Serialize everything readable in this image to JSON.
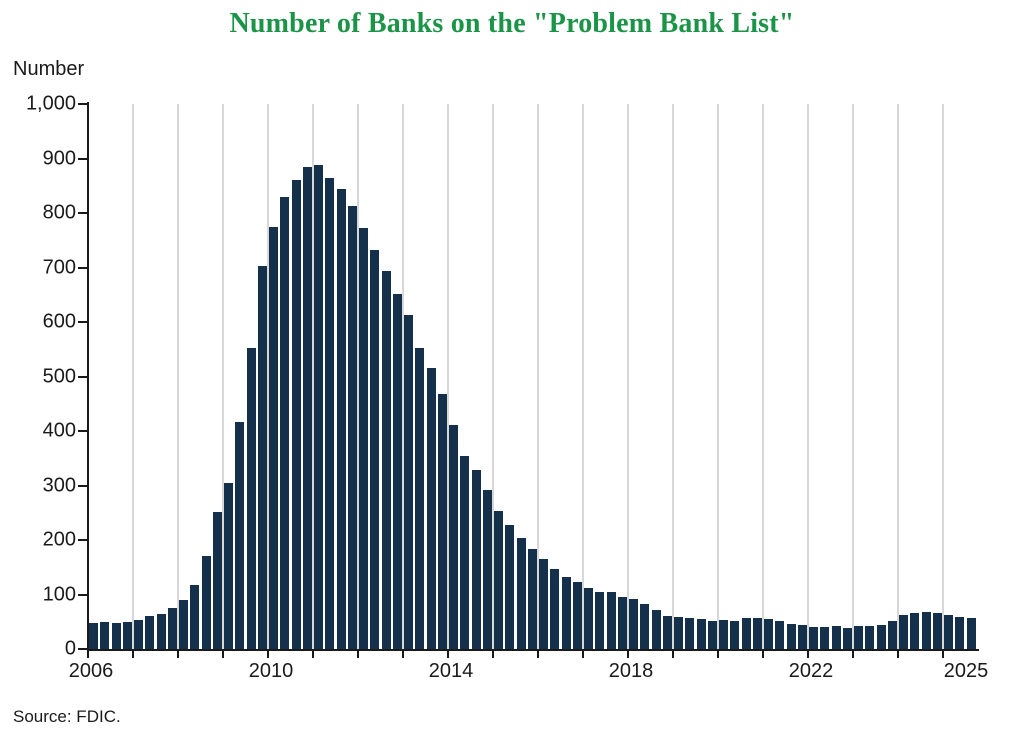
{
  "title": "Number of Banks on the \"Problem Bank List\"",
  "y_axis_label": "Number",
  "source": "Source: FDIC.",
  "colors": {
    "title_green": "#1B9447",
    "bar_navy": "#14304A",
    "gridline_gray": "#D8D8D8",
    "axis_black": "#1A1A1A"
  },
  "chart_data": {
    "type": "bar",
    "frequency": "quarterly",
    "start": "2006 Q1",
    "end": "2025 Q3",
    "title": "Number of Banks on the \"Problem Bank List\"",
    "xlabel": "",
    "ylabel": "Number",
    "ylim": [
      0,
      1000
    ],
    "y_tick_step": 100,
    "y_tick_labels": [
      "0",
      "100",
      "200",
      "300",
      "400",
      "500",
      "600",
      "700",
      "800",
      "900",
      "1,000"
    ],
    "x_axis_labels": [
      "2006",
      "2010",
      "2014",
      "2018",
      "2022",
      "2025"
    ],
    "gridlines": "vertical, one per year, behind bars",
    "legend": "none",
    "series": [
      {
        "name": "Problem banks",
        "data_by_year": [
          {
            "year": 2006,
            "values": [
              48,
              50,
              47,
              50
            ]
          },
          {
            "year": 2007,
            "values": [
              53,
              61,
              65,
              76
            ]
          },
          {
            "year": 2008,
            "values": [
              90,
              117,
              171,
              252
            ]
          },
          {
            "year": 2009,
            "values": [
              305,
              416,
              552,
              702
            ]
          },
          {
            "year": 2010,
            "values": [
              775,
              829,
              860,
              884
            ]
          },
          {
            "year": 2011,
            "values": [
              888,
              865,
              844,
              813
            ]
          },
          {
            "year": 2012,
            "values": [
              772,
              732,
              694,
              651
            ]
          },
          {
            "year": 2013,
            "values": [
              612,
              553,
              515,
              467
            ]
          },
          {
            "year": 2014,
            "values": [
              411,
              354,
              329,
              291
            ]
          },
          {
            "year": 2015,
            "values": [
              253,
              228,
              203,
              183
            ]
          },
          {
            "year": 2016,
            "values": [
              165,
              147,
              132,
              123
            ]
          },
          {
            "year": 2017,
            "values": [
              112,
              105,
              104,
              95
            ]
          },
          {
            "year": 2018,
            "values": [
              92,
              82,
              71,
              60
            ]
          },
          {
            "year": 2019,
            "values": [
              59,
              56,
              55,
              51
            ]
          },
          {
            "year": 2020,
            "values": [
              54,
              52,
              56,
              56
            ]
          },
          {
            "year": 2021,
            "values": [
              55,
              51,
              46,
              44
            ]
          },
          {
            "year": 2022,
            "values": [
              40,
              40,
              42,
              39
            ]
          },
          {
            "year": 2023,
            "values": [
              43,
              43,
              44,
              52
            ]
          },
          {
            "year": 2024,
            "values": [
              63,
              66,
              68,
              66
            ]
          },
          {
            "year": 2025,
            "values": [
              63,
              59,
              56
            ]
          }
        ]
      }
    ]
  }
}
